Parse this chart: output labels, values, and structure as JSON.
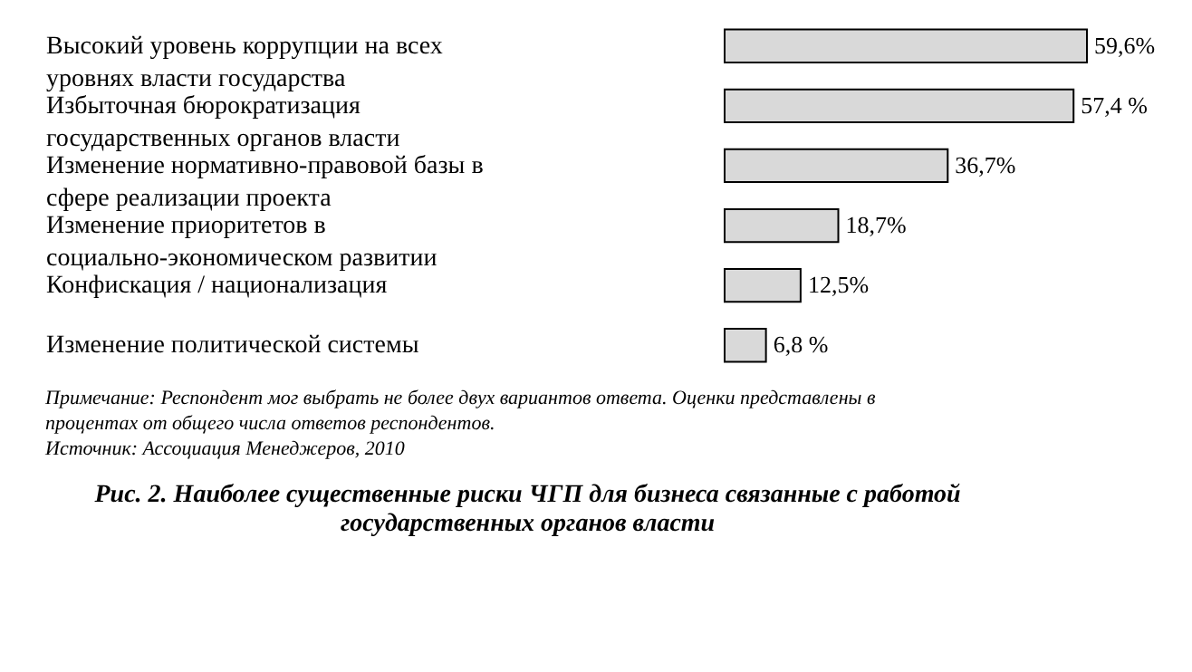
{
  "chart_data": {
    "type": "bar",
    "orientation": "horizontal",
    "title": "Рис. 2. Наиболее существенные риски ЧГП для  бизнеса связанные с работой государственных органов власти",
    "categories": [
      "Высокий уровень коррупции на всех уровнях власти государства",
      "Избыточная бюрократизация государственных органов власти",
      "Изменение нормативно-правовой базы в сфере реализации проекта",
      "Изменение приоритетов в социально-экономическом развитии",
      "Конфискация / национализация",
      "Изменение политической системы"
    ],
    "values": [
      59.6,
      57.4,
      36.7,
      18.7,
      12.5,
      6.8
    ],
    "value_labels": [
      "59,6%",
      "57,4 %",
      "36,7%",
      "18,7%",
      "12,5%",
      "6,8 %"
    ],
    "color": "#d9d9d9",
    "annotations": [
      "Примечание: Респондент мог выбрать не более двух вариантов ответа. Оценки представлены в процентах от общего числа ответов респондентов.",
      "Источник: Ассоциация Менеджеров, 2010"
    ]
  }
}
